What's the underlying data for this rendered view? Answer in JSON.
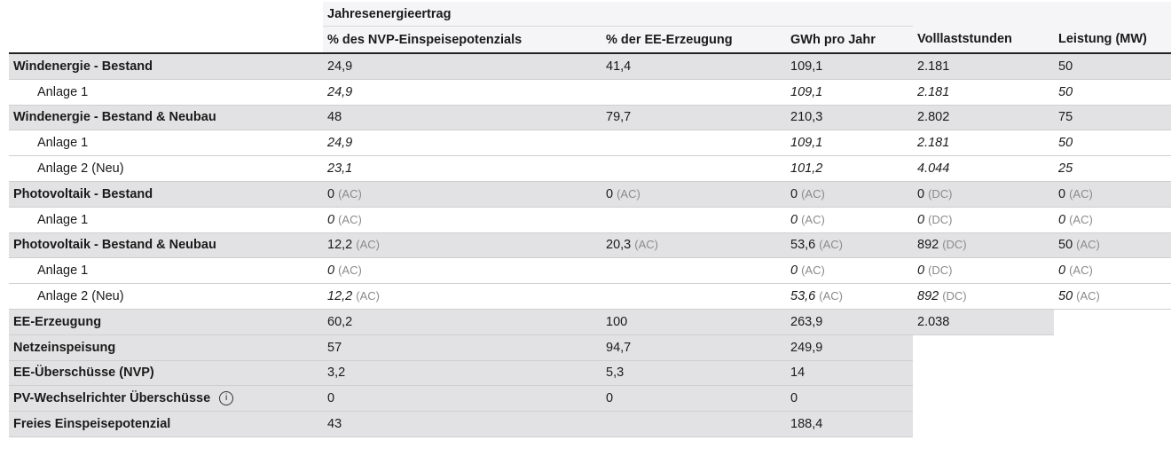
{
  "header": {
    "group": "Jahresenergieertrag",
    "col_nvp": "% des NVP-Einspeisepotenzials",
    "col_ee": "% der EE-Erzeugung",
    "col_gwh": "GWh pro Jahr",
    "col_vlh": "Volllaststunden",
    "col_mw": "Leistung (MW)"
  },
  "rows": [
    {
      "label": "Windenergie - Bestand",
      "nvp": "24,9",
      "ee": "41,4",
      "gwh": "109,1",
      "vlh": "2.181",
      "mw": "50"
    },
    {
      "label": "Anlage 1",
      "nvp": "24,9",
      "gwh": "109,1",
      "vlh": "2.181",
      "mw": "50"
    },
    {
      "label": "Windenergie - Bestand & Neubau",
      "nvp": "48",
      "ee": "79,7",
      "gwh": "210,3",
      "vlh": "2.802",
      "mw": "75"
    },
    {
      "label": "Anlage 1",
      "nvp": "24,9",
      "gwh": "109,1",
      "vlh": "2.181",
      "mw": "50"
    },
    {
      "label": "Anlage 2 (Neu)",
      "nvp": "23,1",
      "gwh": "101,2",
      "vlh": "4.044",
      "mw": "25"
    },
    {
      "label": "Photovoltaik - Bestand",
      "nvp": "0",
      "nvp_u": "(AC)",
      "ee": "0",
      "ee_u": "(AC)",
      "gwh": "0",
      "gwh_u": "(AC)",
      "vlh": "0",
      "vlh_u": "(DC)",
      "mw": "0",
      "mw_u": "(AC)"
    },
    {
      "label": "Anlage 1",
      "nvp": "0",
      "nvp_u": "(AC)",
      "gwh": "0",
      "gwh_u": "(AC)",
      "vlh": "0",
      "vlh_u": "(DC)",
      "mw": "0",
      "mw_u": "(AC)"
    },
    {
      "label": "Photovoltaik - Bestand & Neubau",
      "nvp": "12,2",
      "nvp_u": "(AC)",
      "ee": "20,3",
      "ee_u": "(AC)",
      "gwh": "53,6",
      "gwh_u": "(AC)",
      "vlh": "892",
      "vlh_u": "(DC)",
      "mw": "50",
      "mw_u": "(AC)"
    },
    {
      "label": "Anlage 1",
      "nvp": "0",
      "nvp_u": "(AC)",
      "gwh": "0",
      "gwh_u": "(AC)",
      "vlh": "0",
      "vlh_u": "(DC)",
      "mw": "0",
      "mw_u": "(AC)"
    },
    {
      "label": "Anlage 2 (Neu)",
      "nvp": "12,2",
      "nvp_u": "(AC)",
      "gwh": "53,6",
      "gwh_u": "(AC)",
      "vlh": "892",
      "vlh_u": "(DC)",
      "mw": "50",
      "mw_u": "(AC)"
    },
    {
      "label": "EE-Erzeugung",
      "nvp": "60,2",
      "ee": "100",
      "gwh": "263,9",
      "vlh": "2.038"
    },
    {
      "label": "Netzeinspeisung",
      "nvp": "57",
      "ee": "94,7",
      "gwh": "249,9"
    },
    {
      "label": "EE-Überschüsse (NVP)",
      "nvp": "3,2",
      "ee": "5,3",
      "gwh": "14"
    },
    {
      "label": "PV-Wechselrichter Überschüsse",
      "info_icon": "info-icon",
      "nvp": "0",
      "ee": "0",
      "gwh": "0"
    },
    {
      "label": "Freies Einspeisepotenzial",
      "nvp": "43",
      "gwh": "188,4"
    }
  ]
}
